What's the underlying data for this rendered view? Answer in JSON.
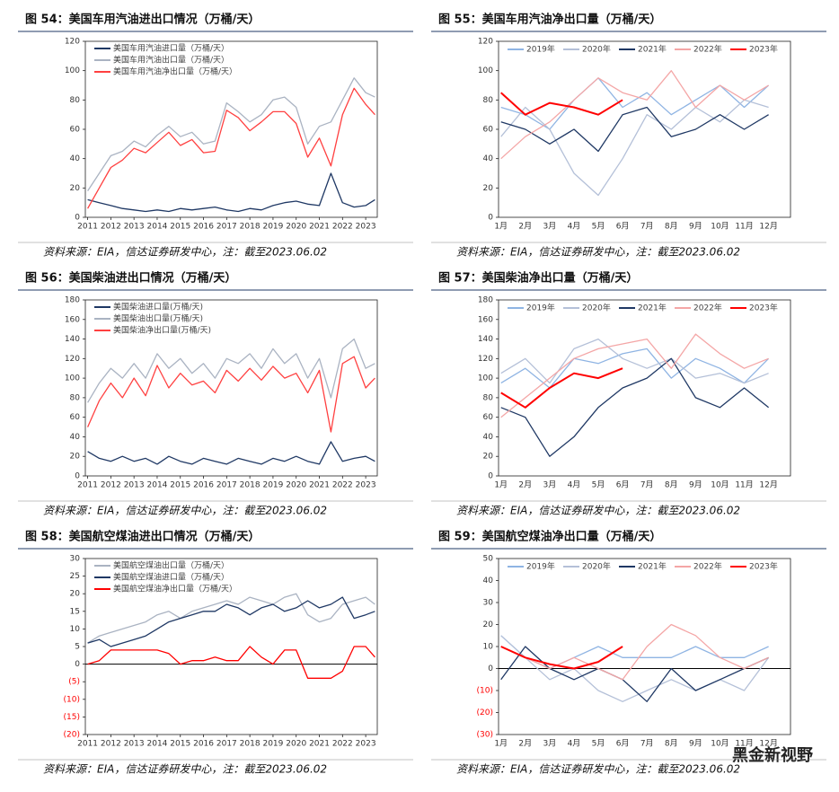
{
  "chart_data": [
    {
      "type": "line",
      "title": "图 54：美国车用汽油进出口情况（万桶/天）",
      "note": "资料来源：EIA，信达证券研发中心，注：截至2023.06.02",
      "x": [
        2011,
        2011.5,
        2012,
        2012.5,
        2013,
        2013.5,
        2014,
        2014.5,
        2015,
        2015.5,
        2016,
        2016.5,
        2017,
        2017.5,
        2018,
        2018.5,
        2019,
        2019.5,
        2020,
        2020.5,
        2021,
        2021.5,
        2022,
        2022.5,
        2023,
        2023.4
      ],
      "xlim": [
        2010.9,
        2023.5
      ],
      "xticks": [
        2011,
        2012,
        2013,
        2014,
        2015,
        2016,
        2017,
        2018,
        2019,
        2020,
        2021,
        2022,
        2023
      ],
      "ylim": [
        0,
        120
      ],
      "yticks": [
        0,
        20,
        40,
        60,
        80,
        100,
        120
      ],
      "legend": "upper left",
      "series": [
        {
          "name": "美国车用汽油进口量（万桶/天）",
          "color": "#1f3864",
          "values": [
            12,
            10,
            8,
            6,
            5,
            4,
            5,
            4,
            6,
            5,
            6,
            7,
            5,
            4,
            6,
            5,
            8,
            10,
            11,
            9,
            8,
            30,
            10,
            7,
            8,
            12
          ]
        },
        {
          "name": "美国车用汽油出口量（万桶/天）",
          "color": "#aab3c2",
          "values": [
            18,
            30,
            42,
            45,
            52,
            48,
            56,
            62,
            55,
            58,
            50,
            52,
            78,
            72,
            65,
            70,
            80,
            82,
            75,
            50,
            62,
            65,
            80,
            95,
            85,
            82
          ]
        },
        {
          "name": "美国车用汽油净出口量（万桶/天）",
          "color": "#ff4040",
          "values": [
            6,
            20,
            34,
            39,
            47,
            44,
            51,
            58,
            49,
            53,
            44,
            45,
            73,
            68,
            59,
            65,
            72,
            72,
            64,
            41,
            54,
            35,
            70,
            88,
            77,
            70
          ]
        }
      ]
    },
    {
      "type": "line",
      "title": "图 55：美国车用汽油净出口量（万桶/天）",
      "note": "资料来源：EIA，信达证券研发中心，注：截至2023.06.02",
      "categories": [
        "1月",
        "2月",
        "3月",
        "4月",
        "5月",
        "6月",
        "7月",
        "8月",
        "9月",
        "10月",
        "11月",
        "12月"
      ],
      "ylim": [
        0,
        120
      ],
      "yticks": [
        0,
        20,
        40,
        60,
        80,
        100,
        120
      ],
      "legend": "top",
      "series": [
        {
          "name": "2019年",
          "color": "#8fb4e3",
          "values": [
            75,
            70,
            60,
            80,
            95,
            75,
            85,
            70,
            80,
            90,
            75,
            90
          ]
        },
        {
          "name": "2020年",
          "color": "#b4c0d8",
          "values": [
            55,
            75,
            60,
            30,
            15,
            40,
            70,
            60,
            75,
            65,
            80,
            75
          ]
        },
        {
          "name": "2021年",
          "color": "#1f3864",
          "values": [
            65,
            60,
            50,
            60,
            45,
            70,
            75,
            55,
            60,
            70,
            60,
            70
          ]
        },
        {
          "name": "2022年",
          "color": "#f4a6a6",
          "values": [
            40,
            55,
            65,
            80,
            95,
            85,
            80,
            100,
            75,
            90,
            80,
            90
          ]
        },
        {
          "name": "2023年",
          "color": "#ff0000",
          "values": [
            85,
            70,
            78,
            75,
            70,
            80,
            null,
            null,
            null,
            null,
            null,
            null
          ]
        }
      ]
    },
    {
      "type": "line",
      "title": "图 56：美国柴油进出口情况（万桶/天）",
      "note": "资料来源：EIA，信达证券研发中心，注：截至2023.06.02",
      "x": [
        2011,
        2011.5,
        2012,
        2012.5,
        2013,
        2013.5,
        2014,
        2014.5,
        2015,
        2015.5,
        2016,
        2016.5,
        2017,
        2017.5,
        2018,
        2018.5,
        2019,
        2019.5,
        2020,
        2020.5,
        2021,
        2021.5,
        2022,
        2022.5,
        2023,
        2023.4
      ],
      "xlim": [
        2010.9,
        2023.5
      ],
      "xticks": [
        2011,
        2012,
        2013,
        2014,
        2015,
        2016,
        2017,
        2018,
        2019,
        2020,
        2021,
        2022,
        2023
      ],
      "ylim": [
        0,
        180
      ],
      "yticks": [
        0,
        20,
        40,
        60,
        80,
        100,
        120,
        140,
        160,
        180
      ],
      "legend": "upper left",
      "series": [
        {
          "name": "美国柴油进口量(万桶/天)",
          "color": "#1f3864",
          "values": [
            25,
            18,
            15,
            20,
            15,
            18,
            12,
            20,
            15,
            12,
            18,
            15,
            12,
            18,
            15,
            12,
            18,
            15,
            20,
            15,
            12,
            35,
            15,
            18,
            20,
            15
          ]
        },
        {
          "name": "美国柴油出口量(万桶/天)",
          "color": "#aab3c2",
          "values": [
            75,
            95,
            110,
            100,
            115,
            100,
            125,
            110,
            120,
            105,
            115,
            100,
            120,
            115,
            125,
            110,
            130,
            115,
            125,
            100,
            120,
            80,
            130,
            140,
            110,
            115
          ]
        },
        {
          "name": "美国柴油净出口量(万桶/天)",
          "color": "#ff4040",
          "values": [
            50,
            77,
            95,
            80,
            100,
            82,
            113,
            90,
            105,
            93,
            97,
            85,
            108,
            97,
            110,
            98,
            112,
            100,
            105,
            85,
            108,
            45,
            115,
            122,
            90,
            100
          ]
        }
      ]
    },
    {
      "type": "line",
      "title": "图 57：美国柴油净出口量（万桶/天）",
      "note": "资料来源：EIA，信达证券研发中心，注：截至2023.06.02",
      "categories": [
        "1月",
        "2月",
        "3月",
        "4月",
        "5月",
        "6月",
        "7月",
        "8月",
        "9月",
        "10月",
        "11月",
        "12月"
      ],
      "ylim": [
        0,
        180
      ],
      "yticks": [
        0,
        20,
        40,
        60,
        80,
        100,
        120,
        140,
        160,
        180
      ],
      "legend": "top",
      "series": [
        {
          "name": "2019年",
          "color": "#8fb4e3",
          "values": [
            95,
            110,
            90,
            120,
            115,
            125,
            130,
            100,
            120,
            110,
            95,
            120
          ]
        },
        {
          "name": "2020年",
          "color": "#b4c0d8",
          "values": [
            105,
            120,
            95,
            130,
            140,
            120,
            110,
            120,
            100,
            105,
            95,
            105
          ]
        },
        {
          "name": "2021年",
          "color": "#1f3864",
          "values": [
            70,
            60,
            20,
            40,
            70,
            90,
            100,
            120,
            80,
            70,
            90,
            70
          ]
        },
        {
          "name": "2022年",
          "color": "#f4a6a6",
          "values": [
            60,
            80,
            100,
            120,
            130,
            135,
            140,
            110,
            145,
            125,
            110,
            120
          ]
        },
        {
          "name": "2023年",
          "color": "#ff0000",
          "values": [
            85,
            70,
            90,
            105,
            100,
            110,
            null,
            null,
            null,
            null,
            null,
            null
          ]
        }
      ]
    },
    {
      "type": "line",
      "title": "图 58：美国航空煤油进出口情况（万桶/天）",
      "note": "资料来源：EIA，信达证券研发中心，注：截至2023.06.02",
      "x": [
        2011,
        2011.5,
        2012,
        2012.5,
        2013,
        2013.5,
        2014,
        2014.5,
        2015,
        2015.5,
        2016,
        2016.5,
        2017,
        2017.5,
        2018,
        2018.5,
        2019,
        2019.5,
        2020,
        2020.5,
        2021,
        2021.5,
        2022,
        2022.5,
        2023,
        2023.4
      ],
      "xlim": [
        2010.9,
        2023.5
      ],
      "xticks": [
        2011,
        2012,
        2013,
        2014,
        2015,
        2016,
        2017,
        2018,
        2019,
        2020,
        2021,
        2022,
        2023
      ],
      "ylim": [
        -20,
        30
      ],
      "yticks": [
        {
          "value": -20,
          "label": "(20)"
        },
        {
          "value": -15,
          "label": "(15)"
        },
        {
          "value": -10,
          "label": "(10)"
        },
        {
          "value": -5,
          "label": "(5)"
        },
        0,
        5,
        10,
        15,
        20,
        25,
        30
      ],
      "negative_tick_color": "#ff0000",
      "legend": "upper left",
      "series": [
        {
          "name": "美国航空煤油出口量（万桶/天）",
          "color": "#aab3c2",
          "values": [
            6,
            8,
            9,
            10,
            11,
            12,
            14,
            15,
            13,
            15,
            16,
            17,
            18,
            17,
            19,
            18,
            17,
            19,
            20,
            14,
            12,
            13,
            17,
            18,
            19,
            17
          ]
        },
        {
          "name": "美国航空煤油进口量（万桶/天）",
          "color": "#1f3864",
          "values": [
            6,
            7,
            5,
            6,
            7,
            8,
            10,
            12,
            13,
            14,
            15,
            15,
            17,
            16,
            14,
            16,
            17,
            15,
            16,
            18,
            16,
            17,
            19,
            13,
            14,
            15
          ]
        },
        {
          "name": "美国航空煤油净出口量（万桶/天）",
          "color": "#ff0000",
          "values": [
            0,
            1,
            4,
            4,
            4,
            4,
            4,
            3,
            0,
            1,
            1,
            2,
            1,
            1,
            5,
            2,
            0,
            4,
            4,
            -4,
            -4,
            -4,
            -2,
            5,
            5,
            2
          ]
        }
      ]
    },
    {
      "type": "line",
      "title": "图 59：美国航空煤油净出口量（万桶/天）",
      "note": "资料来源：EIA，信达证券研发中心，注：截至2023.06.02",
      "categories": [
        "1月",
        "2月",
        "3月",
        "4月",
        "5月",
        "6月",
        "7月",
        "8月",
        "9月",
        "10月",
        "11月",
        "12月"
      ],
      "ylim": [
        -30,
        50
      ],
      "yticks": [
        {
          "value": -30,
          "label": "(30)"
        },
        {
          "value": -20,
          "label": "(20)"
        },
        {
          "value": -10,
          "label": "(10)"
        },
        0,
        10,
        20,
        30,
        40,
        50
      ],
      "negative_tick_color": "#ff0000",
      "legend": "top",
      "series": [
        {
          "name": "2019年",
          "color": "#8fb4e3",
          "values": [
            15,
            5,
            0,
            5,
            10,
            5,
            5,
            5,
            10,
            5,
            5,
            10
          ]
        },
        {
          "name": "2020年",
          "color": "#b4c0d8",
          "values": [
            15,
            5,
            -5,
            0,
            -10,
            -15,
            -10,
            -5,
            -10,
            -5,
            -10,
            5
          ]
        },
        {
          "name": "2021年",
          "color": "#1f3864",
          "values": [
            -5,
            10,
            0,
            -5,
            0,
            -5,
            -15,
            0,
            -10,
            -5,
            0,
            5
          ]
        },
        {
          "name": "2022年",
          "color": "#f4a6a6",
          "values": [
            10,
            5,
            0,
            5,
            0,
            -5,
            10,
            20,
            15,
            5,
            0,
            5
          ]
        },
        {
          "name": "2023年",
          "color": "#ff0000",
          "values": [
            10,
            5,
            2,
            0,
            3,
            10,
            null,
            null,
            null,
            null,
            null,
            null
          ]
        }
      ]
    }
  ],
  "watermark": "黑金新视野"
}
